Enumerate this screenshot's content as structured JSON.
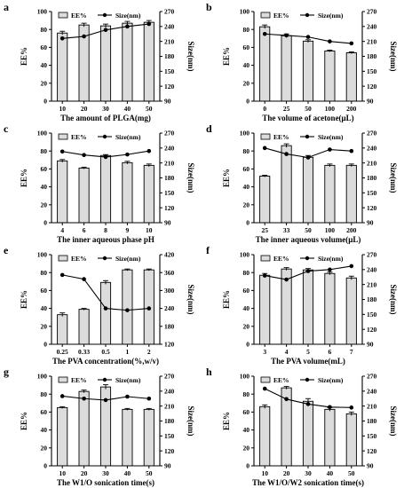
{
  "figure": {
    "background": "#ffffff",
    "bar_color": "#dcdcdc",
    "line_color": "#000000"
  },
  "chart_data": [
    {
      "type": "bar",
      "panel_label": "a",
      "categories": [
        "10",
        "20",
        "30",
        "40",
        "50"
      ],
      "series": [
        {
          "name": "EE%",
          "axis": "left",
          "kind": "bar",
          "values": [
            76,
            85,
            84,
            87,
            88
          ],
          "errors": [
            2,
            2,
            2,
            2,
            2
          ]
        },
        {
          "name": "Size(nm)",
          "axis": "right",
          "kind": "line",
          "values": [
            216,
            220,
            233,
            240,
            245
          ]
        }
      ],
      "xlabel": "The amount of PLGA(mg)",
      "ylabel": "EE%",
      "y2label": "Size(nm)",
      "ylim": [
        0,
        100
      ],
      "yticks": [
        0,
        20,
        40,
        60,
        80,
        100
      ],
      "y2lim": [
        90,
        270
      ],
      "y2ticks": [
        90,
        120,
        150,
        180,
        210,
        240,
        270
      ]
    },
    {
      "type": "bar",
      "panel_label": "b",
      "categories": [
        "0",
        "25",
        "50",
        "100",
        "200"
      ],
      "series": [
        {
          "name": "EE%",
          "axis": "left",
          "kind": "bar",
          "values": [
            83,
            73,
            67,
            56,
            54
          ],
          "errors": [
            2,
            2,
            1.5,
            1,
            1
          ]
        },
        {
          "name": "Size(nm)",
          "axis": "right",
          "kind": "line",
          "values": [
            225,
            222,
            219,
            210,
            206
          ]
        }
      ],
      "xlabel": "The volume of acetone(μL)",
      "ylabel": "EE%",
      "y2label": "Size(nm)",
      "ylim": [
        0,
        100
      ],
      "yticks": [
        0,
        20,
        40,
        60,
        80,
        100
      ],
      "y2lim": [
        90,
        270
      ],
      "y2ticks": [
        90,
        120,
        150,
        180,
        210,
        240,
        270
      ]
    },
    {
      "type": "bar",
      "panel_label": "c",
      "categories": [
        "4",
        "6",
        "8",
        "9",
        "10"
      ],
      "series": [
        {
          "name": "EE%",
          "axis": "left",
          "kind": "bar",
          "values": [
            69,
            61,
            75,
            67,
            64
          ],
          "errors": [
            1.5,
            1,
            1,
            1.5,
            1.5
          ]
        },
        {
          "name": "Size(nm)",
          "axis": "right",
          "kind": "line",
          "values": [
            233,
            226,
            222,
            227,
            234
          ]
        }
      ],
      "xlabel": "The inner aqueous phase pH",
      "ylabel": "EE%",
      "y2label": "Size(nm)",
      "ylim": [
        0,
        100
      ],
      "yticks": [
        0,
        20,
        40,
        60,
        80,
        100
      ],
      "y2lim": [
        90,
        270
      ],
      "y2ticks": [
        90,
        120,
        150,
        180,
        210,
        240,
        270
      ]
    },
    {
      "type": "bar",
      "panel_label": "d",
      "categories": [
        "25",
        "33",
        "50",
        "100",
        "200"
      ],
      "series": [
        {
          "name": "EE%",
          "axis": "left",
          "kind": "bar",
          "values": [
            52,
            86,
            73,
            64,
            64
          ],
          "errors": [
            1,
            2,
            2,
            1.5,
            1.5
          ]
        },
        {
          "name": "Size(nm)",
          "axis": "right",
          "kind": "line",
          "values": [
            240,
            228,
            221,
            237,
            234
          ]
        }
      ],
      "xlabel": "The inner aqueous volume(μL)",
      "ylabel": "EE%",
      "y2label": "Size(nm)",
      "ylim": [
        0,
        100
      ],
      "yticks": [
        0,
        20,
        40,
        60,
        80,
        100
      ],
      "y2lim": [
        90,
        270
      ],
      "y2ticks": [
        90,
        120,
        150,
        180,
        210,
        240,
        270
      ]
    },
    {
      "type": "bar",
      "panel_label": "e",
      "categories": [
        "0.25",
        "0.33",
        "0.5",
        "1",
        "2"
      ],
      "series": [
        {
          "name": "EE%",
          "axis": "left",
          "kind": "bar",
          "values": [
            33,
            39,
            69,
            83,
            83
          ],
          "errors": [
            2,
            1,
            2,
            1,
            1
          ]
        },
        {
          "name": "Size(nm)",
          "axis": "right",
          "kind": "line",
          "values": [
            352,
            338,
            240,
            234,
            240
          ]
        }
      ],
      "xlabel": "The PVA concentration(%,w/v)",
      "ylabel": "EE%",
      "y2label": "Size(nm)",
      "ylim": [
        0,
        100
      ],
      "yticks": [
        0,
        20,
        40,
        60,
        80,
        100
      ],
      "y2lim": [
        120,
        420
      ],
      "y2ticks": [
        120,
        180,
        240,
        300,
        360,
        420
      ]
    },
    {
      "type": "bar",
      "panel_label": "f",
      "categories": [
        "3",
        "4",
        "5",
        "6",
        "7"
      ],
      "series": [
        {
          "name": "EE%",
          "axis": "left",
          "kind": "bar",
          "values": [
            77,
            84,
            83,
            79,
            74
          ],
          "errors": [
            2,
            1.5,
            1.5,
            1.5,
            2
          ]
        },
        {
          "name": "Size(nm)",
          "axis": "right",
          "kind": "line",
          "values": [
            228,
            220,
            237,
            240,
            247
          ]
        }
      ],
      "xlabel": "The PVA volume(mL)",
      "ylabel": "EE%",
      "y2label": "Size(nm)",
      "ylim": [
        0,
        100
      ],
      "yticks": [
        0,
        20,
        40,
        60,
        80,
        100
      ],
      "y2lim": [
        90,
        270
      ],
      "y2ticks": [
        90,
        120,
        150,
        180,
        210,
        240,
        270
      ]
    },
    {
      "type": "bar",
      "panel_label": "g",
      "categories": [
        "10",
        "20",
        "30",
        "40",
        "50"
      ],
      "series": [
        {
          "name": "EE%",
          "axis": "left",
          "kind": "bar",
          "values": [
            65,
            83,
            88,
            63,
            63
          ],
          "errors": [
            1,
            1.5,
            2.5,
            1,
            1
          ]
        },
        {
          "name": "Size(nm)",
          "axis": "right",
          "kind": "line",
          "values": [
            230,
            225,
            222,
            229,
            225
          ]
        }
      ],
      "xlabel": "The W1/O sonication time(s)",
      "ylabel": "EE%",
      "y2label": "Size(nm)",
      "ylim": [
        0,
        100
      ],
      "yticks": [
        0,
        20,
        40,
        60,
        80,
        100
      ],
      "y2lim": [
        90,
        270
      ],
      "y2ticks": [
        90,
        120,
        150,
        180,
        210,
        240,
        270
      ]
    },
    {
      "type": "bar",
      "panel_label": "h",
      "categories": [
        "10",
        "20",
        "30",
        "40",
        "50"
      ],
      "series": [
        {
          "name": "EE%",
          "axis": "left",
          "kind": "bar",
          "values": [
            66,
            87,
            72,
            63,
            58
          ],
          "errors": [
            2,
            1.5,
            3,
            2,
            2
          ]
        },
        {
          "name": "Size(nm)",
          "axis": "right",
          "kind": "line",
          "values": [
            245,
            224,
            214,
            208,
            207
          ]
        }
      ],
      "xlabel": "The W1/O/W2 sonication time(s)",
      "ylabel": "EE%",
      "y2label": "Size(nm)",
      "ylim": [
        0,
        100
      ],
      "yticks": [
        0,
        20,
        40,
        60,
        80,
        100
      ],
      "y2lim": [
        90,
        270
      ],
      "y2ticks": [
        90,
        120,
        150,
        180,
        210,
        240,
        270
      ]
    }
  ]
}
